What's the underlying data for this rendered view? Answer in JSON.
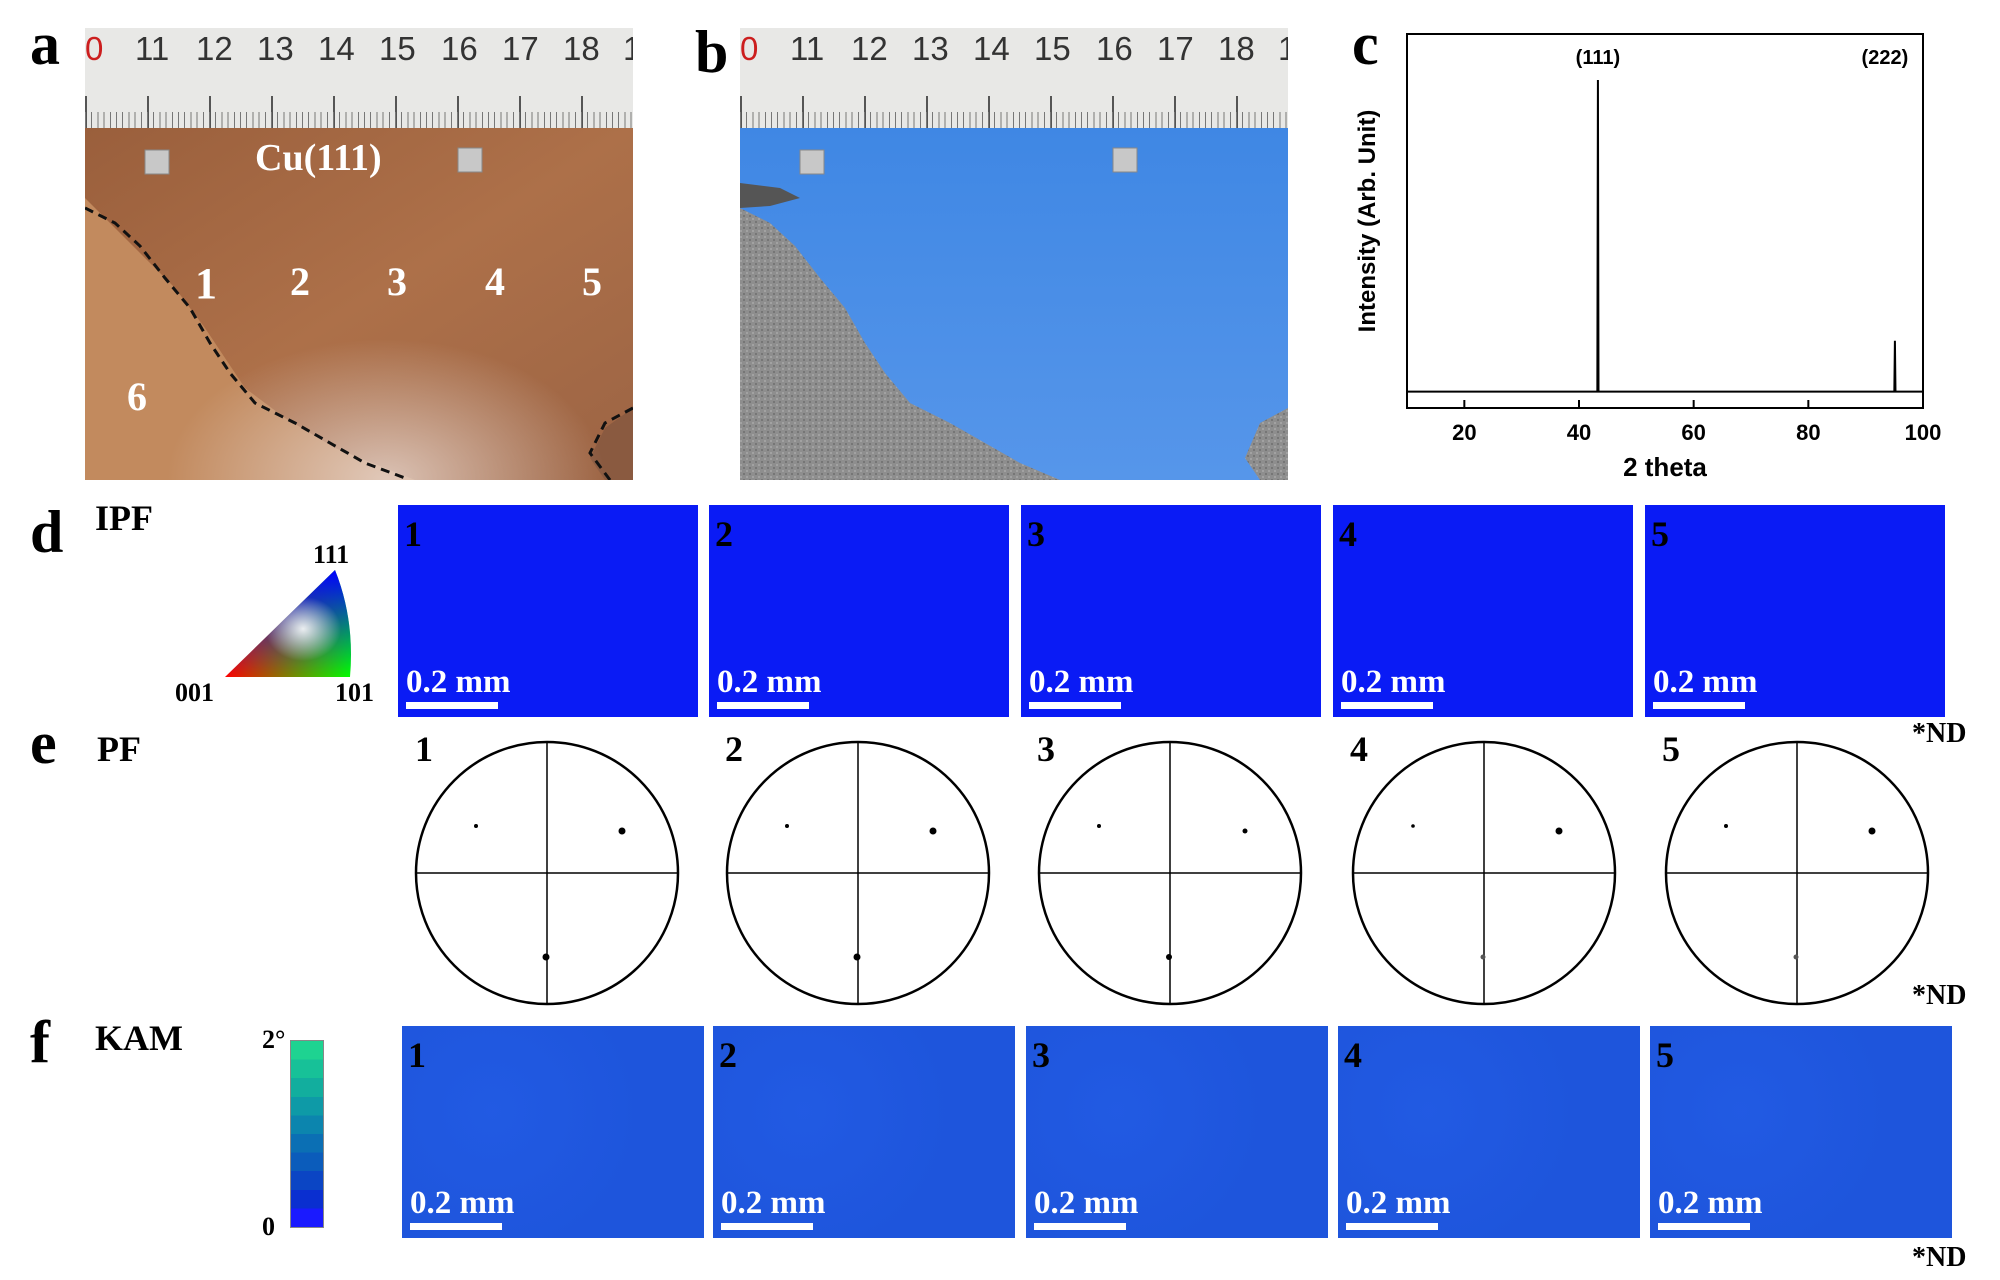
{
  "panels": {
    "a": "a",
    "b": "b",
    "c": "c",
    "d": "d",
    "e": "e",
    "f": "f"
  },
  "ruler": {
    "labels": [
      "0",
      "11",
      "12",
      "13",
      "14",
      "15",
      "16",
      "17",
      "18",
      "1"
    ],
    "labels_b": [
      "0",
      "11",
      "12",
      "13",
      "14",
      "15",
      "16",
      "17",
      "18",
      "1"
    ]
  },
  "photo_a": {
    "title": "Cu(111)",
    "regions": [
      "1",
      "2",
      "3",
      "4",
      "5",
      "6"
    ],
    "colors": {
      "copper": "#a86a44",
      "sand": "#c0895e"
    }
  },
  "photo_b": {
    "colors": {
      "blue": "#4a8fe6",
      "gray": "#8c8c8c"
    }
  },
  "chart_data": {
    "type": "line",
    "xlabel": "2 theta",
    "ylabel": "Intensity (Arb. Unit)",
    "xlim": [
      10,
      100
    ],
    "xticks": [
      "20",
      "40",
      "60",
      "80",
      "100"
    ],
    "series": [
      {
        "x": [
          10,
          43.2,
          43.3,
          43.4,
          95.0,
          95.1,
          95.2,
          100
        ],
        "y": [
          0.02,
          0.02,
          1.0,
          0.02,
          0.02,
          0.18,
          0.02,
          0.02
        ]
      }
    ],
    "annotations": [
      {
        "text": "(111)",
        "x": 43.3
      },
      {
        "text": "(222)",
        "x": 95.1
      }
    ]
  },
  "ipf": {
    "label": "IPF",
    "legend": {
      "top": "111",
      "left": "001",
      "right": "101"
    },
    "tiles": [
      "1",
      "2",
      "3",
      "4",
      "5"
    ],
    "scale": "0.2 mm",
    "color": "#0a1bf5",
    "nd": "*ND"
  },
  "pf": {
    "label": "PF",
    "tiles": [
      "1",
      "2",
      "3",
      "4",
      "5"
    ],
    "nd": "*ND"
  },
  "kam": {
    "label": "KAM",
    "colorbar": {
      "max": "2°",
      "min": "0"
    },
    "tiles": [
      "1",
      "2",
      "3",
      "4",
      "5"
    ],
    "scale": "0.2 mm",
    "color": "#1e55dc",
    "nd": "*ND"
  }
}
